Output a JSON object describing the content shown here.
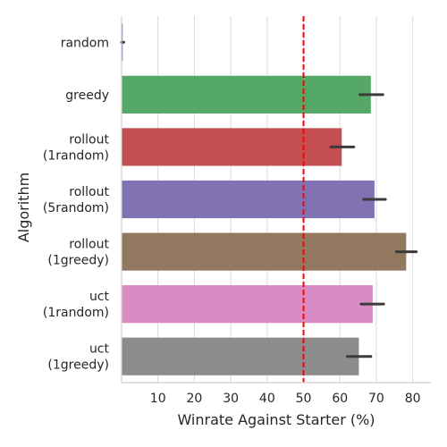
{
  "chart_data": {
    "type": "bar",
    "orientation": "horizontal",
    "xlabel": "Winrate Against Starter (%)",
    "ylabel": "Algorithm",
    "xlim": [
      0,
      85
    ],
    "xticks": [
      10,
      20,
      30,
      40,
      50,
      60,
      70,
      80
    ],
    "grid": "vertical",
    "reference_line": {
      "x": 50,
      "style": "dashed",
      "color": "#ff0000"
    },
    "categories": [
      [
        "random"
      ],
      [
        "greedy"
      ],
      [
        "rollout",
        "(1random)"
      ],
      [
        "rollout",
        "(5random)"
      ],
      [
        "rollout",
        "(1greedy)"
      ],
      [
        "uct",
        "(1random)"
      ],
      [
        "uct",
        "(1greedy)"
      ]
    ],
    "values": [
      0.3,
      68.5,
      60.5,
      69.5,
      78.2,
      69.0,
      65.2
    ],
    "ci": [
      [
        0,
        0.6
      ],
      [
        65.5,
        71.8
      ],
      [
        57.5,
        63.8
      ],
      [
        66.5,
        72.5
      ],
      [
        75.5,
        81.0
      ],
      [
        65.8,
        72.0
      ],
      [
        62.0,
        68.5
      ]
    ],
    "colors": [
      "#4c72b0",
      "#55a868",
      "#c44e52",
      "#8172b3",
      "#937860",
      "#da8bc3",
      "#8c8c8c"
    ],
    "error_bar_color": "#3b3b3b"
  }
}
